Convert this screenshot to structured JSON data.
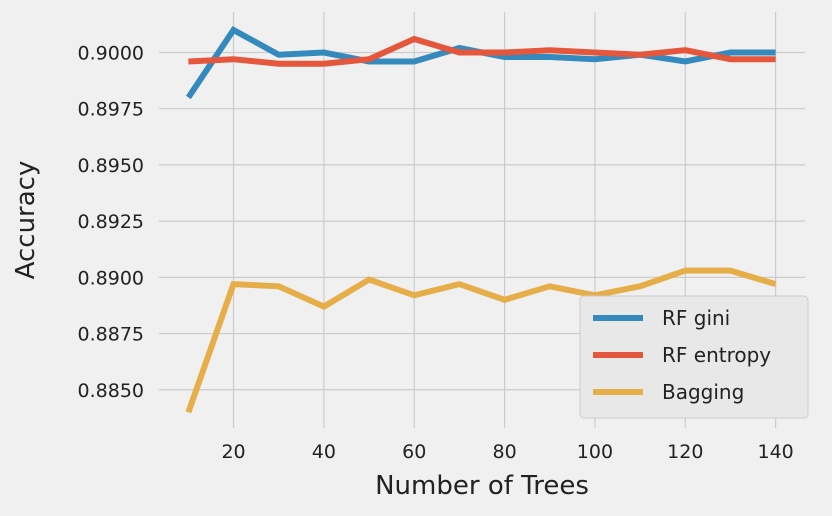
{
  "chart_data": {
    "type": "line",
    "title": "",
    "xlabel": "Number of Trees",
    "ylabel": "Accuracy",
    "x": [
      10,
      20,
      30,
      40,
      50,
      60,
      70,
      80,
      90,
      100,
      110,
      120,
      130,
      140
    ],
    "xlim": [
      3.5,
      146.5
    ],
    "ylim": [
      0.8833,
      0.9018
    ],
    "xticks": [
      20,
      40,
      60,
      80,
      100,
      120,
      140
    ],
    "xtick_labels": [
      "20",
      "40",
      "60",
      "80",
      "100",
      "120",
      "140"
    ],
    "yticks": [
      0.885,
      0.8875,
      0.89,
      0.8925,
      0.895,
      0.8975,
      0.9
    ],
    "ytick_labels": [
      "0.8850",
      "0.8875",
      "0.8900",
      "0.8925",
      "0.8950",
      "0.8975",
      "0.9000"
    ],
    "grid": true,
    "legend_position": "lower-right",
    "series": [
      {
        "name": "RF gini",
        "color": "#348abd",
        "values": [
          0.898,
          0.901,
          0.8999,
          0.9,
          0.8996,
          0.8996,
          0.9002,
          0.8998,
          0.8998,
          0.8997,
          0.8999,
          0.8996,
          0.9,
          0.9
        ]
      },
      {
        "name": "RF entropy",
        "color": "#e5573c",
        "values": [
          0.8996,
          0.8997,
          0.8995,
          0.8995,
          0.8997,
          0.9006,
          0.9,
          0.9,
          0.9001,
          0.9,
          0.8999,
          0.9001,
          0.8997,
          0.8997
        ]
      },
      {
        "name": "Bagging",
        "color": "#e5ae48",
        "values": [
          0.884,
          0.8897,
          0.8896,
          0.8887,
          0.8899,
          0.8892,
          0.8897,
          0.889,
          0.8896,
          0.8892,
          0.8896,
          0.8903,
          0.8903,
          0.8897
        ]
      }
    ]
  }
}
